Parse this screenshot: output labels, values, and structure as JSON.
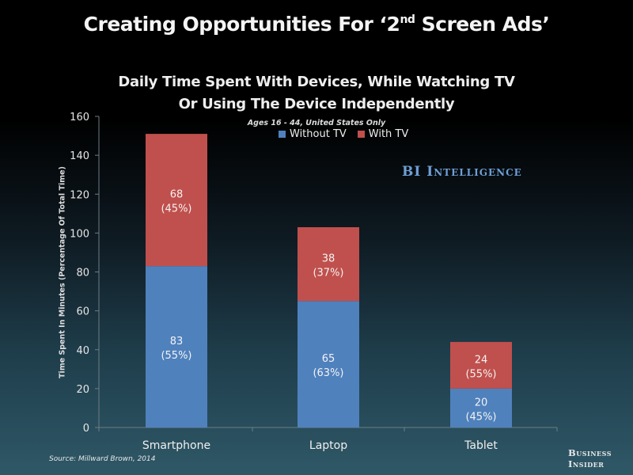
{
  "slide": {
    "title_pre": "Creating Opportunities For ‘2",
    "title_sup": "nd",
    "title_post": " Screen Ads’",
    "watermark": "BI Intelligence",
    "source": "Source: Millward Brown, 2014",
    "brand_line1": "Business",
    "brand_line2": "Insider"
  },
  "chart_data": {
    "type": "bar",
    "stacked": true,
    "title_line1": "Daily Time Spent With Devices, While Watching TV",
    "title_line2": "Or Using The Device Independently",
    "subtitle": "Ages 16 - 44, United States Only",
    "xlabel": "",
    "ylabel": "Time Spent In Minutes (Percentage Of Total Time)",
    "ylim": [
      0,
      160
    ],
    "yticks": [
      0,
      20,
      40,
      60,
      80,
      100,
      120,
      140,
      160
    ],
    "grid": false,
    "legend_position": "top-center",
    "categories": [
      "Smartphone",
      "Laptop",
      "Tablet"
    ],
    "series": [
      {
        "name": "Without TV",
        "color": "#4f81bd",
        "values": [
          83,
          65,
          20
        ],
        "labels": [
          "83",
          "65",
          "20"
        ],
        "percent_labels": [
          "(55%)",
          "(63%)",
          "(45%)"
        ]
      },
      {
        "name": "With TV",
        "color": "#c0504d",
        "values": [
          68,
          38,
          24
        ],
        "labels": [
          "68",
          "38",
          "24"
        ],
        "percent_labels": [
          "(45%)",
          "(37%)",
          "(55%)"
        ]
      }
    ]
  }
}
